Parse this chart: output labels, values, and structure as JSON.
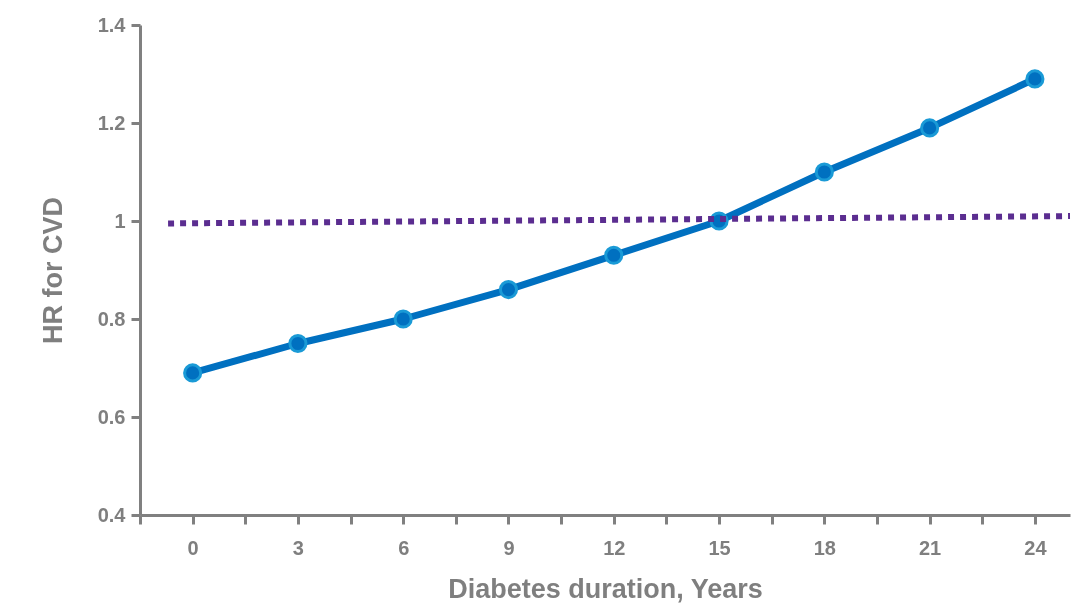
{
  "chart_data": {
    "type": "line",
    "xlabel": "Diabetes duration, Years",
    "ylabel": "HR for CVD",
    "x": [
      0,
      3,
      6,
      9,
      12,
      15,
      18,
      21,
      24
    ],
    "series": [
      {
        "color": "#0070c0",
        "marker": "circle",
        "line_style": "solid",
        "values": [
          0.69,
          0.75,
          0.8,
          0.86,
          0.93,
          1.0,
          1.1,
          1.19,
          1.29
        ]
      },
      {
        "color": "#5b2d90",
        "marker": "none",
        "line_style": "dotted",
        "x": [
          -0.7,
          25
        ],
        "values": [
          0.995,
          1.01
        ]
      }
    ],
    "xlim": [
      -1.5,
      25
    ],
    "xticks": [
      {
        "value": -1.5,
        "label": null
      },
      0,
      {
        "value": 1.5,
        "label": null
      },
      3,
      {
        "value": 4.5,
        "label": null
      },
      6,
      {
        "value": 7.5,
        "label": null
      },
      9,
      {
        "value": 10.5,
        "label": null
      },
      12,
      {
        "value": 13.5,
        "label": null
      },
      15,
      {
        "value": 16.5,
        "label": null
      },
      18,
      {
        "value": 19.5,
        "label": null
      },
      21,
      {
        "value": 22.5,
        "label": null
      },
      24
    ],
    "ylim": [
      0.4,
      1.4
    ],
    "yticks": [
      0.4,
      0.6,
      0.8,
      1,
      1.2,
      1.4
    ],
    "grid": false
  }
}
